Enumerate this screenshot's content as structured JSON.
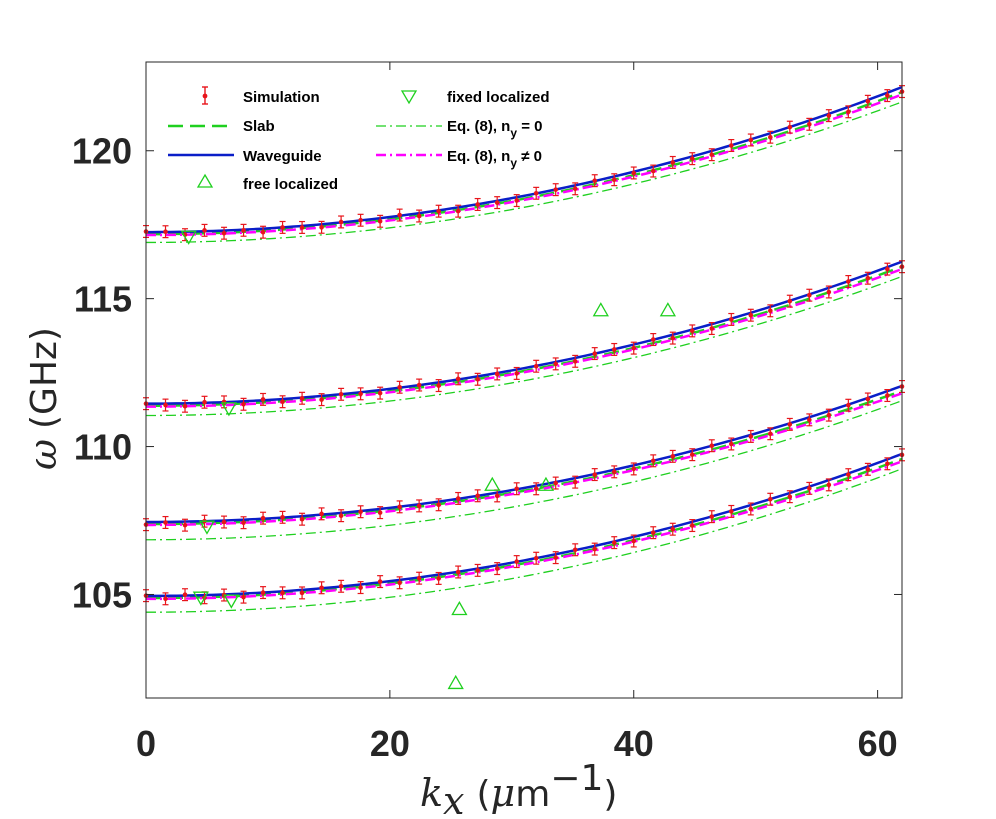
{
  "chart_data": {
    "type": "line",
    "title": "",
    "xlabel": {
      "var": "k",
      "sub": "x",
      "unit_open": "(",
      "mu": "μ",
      "unit": "m",
      "exp": "−1",
      "unit_close": ")"
    },
    "ylabel": {
      "var": "ω",
      "unit": "(GHz)"
    },
    "xlim": [
      0,
      62
    ],
    "ylim": [
      101.5,
      123
    ],
    "xticks": [
      0,
      20,
      40,
      60
    ],
    "yticks": [
      105,
      110,
      115,
      120
    ],
    "xtick_labels": [
      "0",
      "20",
      "40",
      "60"
    ],
    "ytick_labels": [
      "105",
      "110",
      "115",
      "120"
    ],
    "branches": [
      {
        "w0": 104.9,
        "w62": 109.7
      },
      {
        "w0": 107.4,
        "w62": 112.0
      },
      {
        "w0": 111.4,
        "w62": 116.2
      },
      {
        "w0": 117.2,
        "w62": 122.1
      }
    ],
    "eq8_ny0_offset_at_0": [
      -0.5,
      -0.55,
      -0.35,
      -0.3
    ],
    "series": [
      {
        "name": "Simulation",
        "label": "Simulation",
        "color": "#e8141a",
        "style": "errorbar",
        "errorbar_halfheight": 0.2,
        "x_values": [
          0,
          1.6,
          3.2,
          4.8,
          6.4,
          8,
          9.6,
          11.2,
          12.8,
          14.4,
          16,
          17.6,
          19.2,
          20.8,
          22.4,
          24,
          25.6,
          27.2,
          28.8,
          30.4,
          32,
          33.6,
          35.2,
          36.8,
          38.4,
          40,
          41.6,
          43.2,
          44.8,
          46.4,
          48,
          49.6,
          51.2,
          52.8,
          54.4,
          56,
          57.6,
          59.2,
          60.8,
          62
        ]
      },
      {
        "name": "Slab",
        "label": "Slab",
        "color": "#1fd01f",
        "style": "dashed"
      },
      {
        "name": "Waveguide",
        "label": "Waveguide",
        "color": "#0a1ec8",
        "style": "solid"
      },
      {
        "name": "free localized",
        "label": "free localized",
        "color": "#1fd01f",
        "style": "triangle-up",
        "points": [
          [
            25.4,
            102.0
          ],
          [
            25.7,
            104.5
          ],
          [
            28.4,
            108.7
          ],
          [
            32.8,
            108.7
          ],
          [
            37.3,
            114.6
          ],
          [
            42.8,
            114.6
          ]
        ]
      },
      {
        "name": "fixed localized",
        "label": "fixed localized",
        "color": "#1fd01f",
        "style": "triangle-down",
        "points": [
          [
            3.5,
            117.1
          ],
          [
            6.8,
            111.3
          ],
          [
            5.0,
            107.3
          ],
          [
            4.5,
            104.9
          ],
          [
            7.0,
            104.8
          ]
        ]
      },
      {
        "name": "Eq. (8), n_y = 0",
        "label_main": "Eq. (8), n",
        "label_sub": "y",
        "label_tail": " = 0",
        "color": "#1fd01f",
        "style": "dashdot"
      },
      {
        "name": "Eq. (8), n_y ≠ 0",
        "label_main": "Eq. (8), n",
        "label_sub": "y",
        "label_tail": " ≠ 0",
        "color": "#ff00ff",
        "style": "dashdot"
      }
    ]
  }
}
